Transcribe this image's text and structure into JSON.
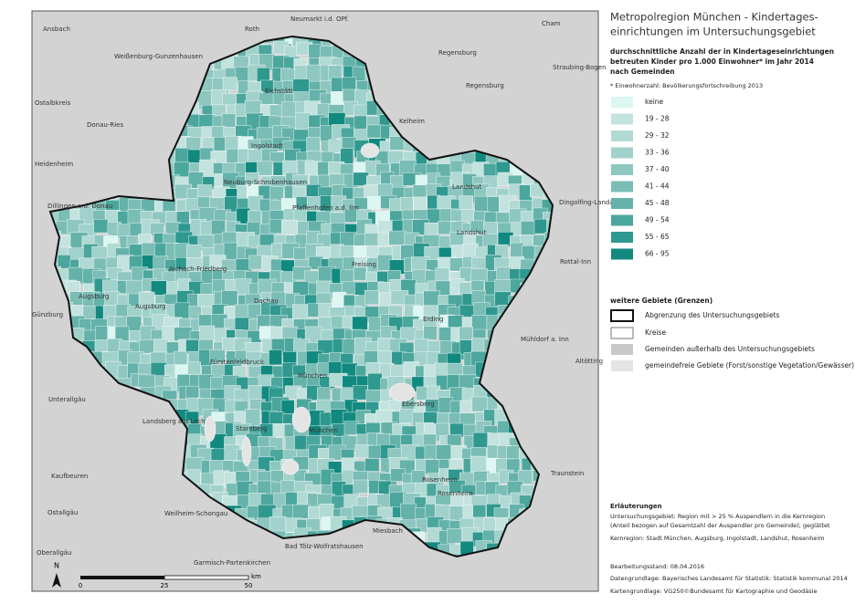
{
  "title": [
    "Metropolregion München - Kindertages-",
    "einrichtungen im Untersuchungsgebiet"
  ],
  "subtitle": [
    "durchschnittliche Anzahl der in Kindertageseinrichtungen",
    "betreuten Kinder pro 1.000 Einwohner* im Jahr 2014",
    "nach Gemeinden"
  ],
  "footnote": "* Einwohnerzahl: Bevölkerungsfortschreibung 2013",
  "legend": [
    {
      "label": "keine",
      "color": "#dcf6f2"
    },
    {
      "label": "19 - 28",
      "color": "#c4e3df"
    },
    {
      "label": "29 - 32",
      "color": "#b2dad5"
    },
    {
      "label": "33 - 36",
      "color": "#a1d1cb"
    },
    {
      "label": "37 - 40",
      "color": "#8ec7c0"
    },
    {
      "label": "41 - 44",
      "color": "#7abdb5"
    },
    {
      "label": "45 - 48",
      "color": "#64b2aa"
    },
    {
      "label": "49 - 54",
      "color": "#4ba69d"
    },
    {
      "label": "55 - 65",
      "color": "#2f988f"
    },
    {
      "label": "66 - 95",
      "color": "#12897f"
    }
  ],
  "other_areas": {
    "title": "weitere Gebiete (Grenzen)",
    "items": [
      "Abgrenzung des Untersuchungsgebiets",
      "Kreise",
      "Gemeinden außerhalb des Untersuchungsgebiets",
      "gemeindefreie Gebiete (Forst/sonstige Vegetation/Gewässer)"
    ]
  },
  "notes": {
    "title": "Erläuterungen",
    "lines": [
      "Untersuchungsgebiet: Region mit > 25 % Auspendlern in die Kernregion",
      "(Anteil bezogen auf Gesamtzahl der Auspendler pro Gemeinde); geglättet",
      "Kernregion: Stadt München, Augsburg, Ingolstadt, Landshut, Rosenheim"
    ]
  },
  "status": "Bearbeitungsstand: 08.04.2016",
  "sources": [
    "Datengrundlage: Bayerisches Landesamt für Statistik: Statistik kommunal 2014",
    "Kartengrundlage: VG250©Bundesamt für Kartographie und Geodäsie"
  ],
  "map_labels": [
    "Ansbach",
    "Roth",
    "Neumarkt i.d. OPf.",
    "Cham",
    "Weißenburg-Gunzenhausen",
    "Regensburg",
    "Straubing-Bogen",
    "Regensburg",
    "Ostalbkreis",
    "Donau-Ries",
    "Eichstätt",
    "Kelheim",
    "Ingolstadt",
    "Heidenheim",
    "Neuburg-Schrobenhausen",
    "Landshut",
    "Dingolfing-Landau",
    "Dillingen a.d. Donau",
    "Pfaffenhofen a.d. Ilm",
    "Landshut",
    "Aichach-Friedberg",
    "Freising",
    "Rottal-Inn",
    "Augsburg",
    "Augsburg",
    "Dachau",
    "Günzburg",
    "Erding",
    "Mühldorf a. Inn",
    "Fürstenfeldbruck",
    "Altötting",
    "München",
    "Unterallgäu",
    "Ebersberg",
    "Landsberg am Lech",
    "Starnberg",
    "München",
    "Kaufbeuren",
    "Rosenheim",
    "Traunstein",
    "Rosenheim",
    "Ostallgäu",
    "Weilheim-Schongau",
    "Miesbach",
    "Bad Tölz-Wolfratshausen",
    "Oberallgäu",
    "Garmisch-Partenkirchen"
  ],
  "scale": {
    "ticks": [
      "0",
      "25",
      "50"
    ],
    "unit": "km"
  },
  "north": "N"
}
